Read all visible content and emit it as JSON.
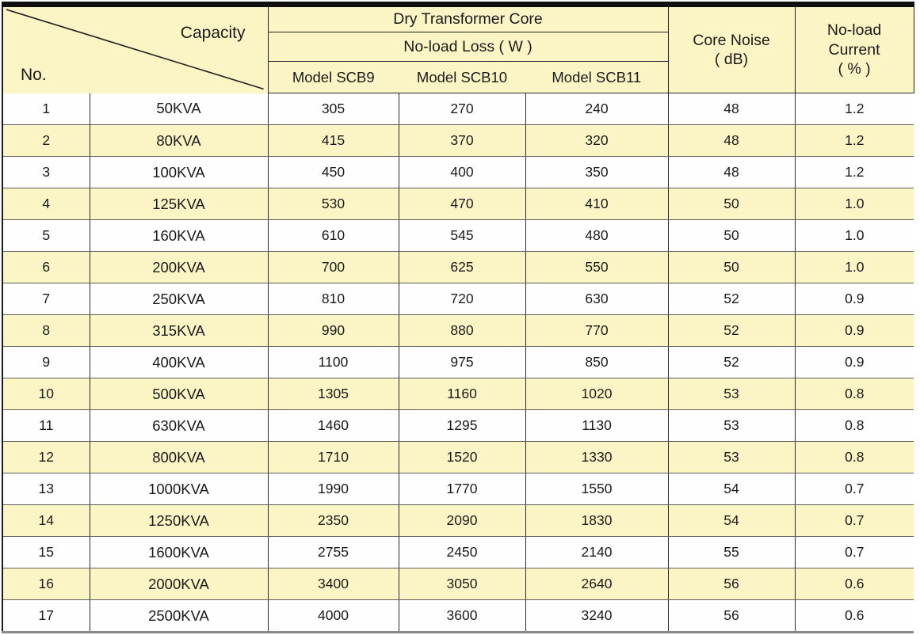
{
  "table": {
    "corner": {
      "row_label": "No.",
      "col_label": "Capacity"
    },
    "header": {
      "group_title": "Dry Transformer Core",
      "sub_title": "No-load Loss ( W )",
      "model_columns": [
        "Model SCB9",
        "Model SCB10",
        "Model SCB11"
      ],
      "core_noise": "Core Noise\n( dB)",
      "no_load_current": "No-load\nCurrent\n( % )"
    },
    "rows": [
      {
        "no": "1",
        "capacity": "50KVA",
        "scb9": "305",
        "scb10": "270",
        "scb11": "240",
        "noise": "48",
        "current": "1.2"
      },
      {
        "no": "2",
        "capacity": "80KVA",
        "scb9": "415",
        "scb10": "370",
        "scb11": "320",
        "noise": "48",
        "current": "1.2"
      },
      {
        "no": "3",
        "capacity": "100KVA",
        "scb9": "450",
        "scb10": "400",
        "scb11": "350",
        "noise": "48",
        "current": "1.2"
      },
      {
        "no": "4",
        "capacity": "125KVA",
        "scb9": "530",
        "scb10": "470",
        "scb11": "410",
        "noise": "50",
        "current": "1.0"
      },
      {
        "no": "5",
        "capacity": "160KVA",
        "scb9": "610",
        "scb10": "545",
        "scb11": "480",
        "noise": "50",
        "current": "1.0"
      },
      {
        "no": "6",
        "capacity": "200KVA",
        "scb9": "700",
        "scb10": "625",
        "scb11": "550",
        "noise": "50",
        "current": "1.0"
      },
      {
        "no": "7",
        "capacity": "250KVA",
        "scb9": "810",
        "scb10": "720",
        "scb11": "630",
        "noise": "52",
        "current": "0.9"
      },
      {
        "no": "8",
        "capacity": "315KVA",
        "scb9": "990",
        "scb10": "880",
        "scb11": "770",
        "noise": "52",
        "current": "0.9"
      },
      {
        "no": "9",
        "capacity": "400KVA",
        "scb9": "1100",
        "scb10": "975",
        "scb11": "850",
        "noise": "52",
        "current": "0.9"
      },
      {
        "no": "10",
        "capacity": "500KVA",
        "scb9": "1305",
        "scb10": "1160",
        "scb11": "1020",
        "noise": "53",
        "current": "0.8"
      },
      {
        "no": "11",
        "capacity": "630KVA",
        "scb9": "1460",
        "scb10": "1295",
        "scb11": "1130",
        "noise": "53",
        "current": "0.8"
      },
      {
        "no": "12",
        "capacity": "800KVA",
        "scb9": "1710",
        "scb10": "1520",
        "scb11": "1330",
        "noise": "53",
        "current": "0.8"
      },
      {
        "no": "13",
        "capacity": "1000KVA",
        "scb9": "1990",
        "scb10": "1770",
        "scb11": "1550",
        "noise": "54",
        "current": "0.7"
      },
      {
        "no": "14",
        "capacity": "1250KVA",
        "scb9": "2350",
        "scb10": "2090",
        "scb11": "1830",
        "noise": "54",
        "current": "0.7"
      },
      {
        "no": "15",
        "capacity": "1600KVA",
        "scb9": "2755",
        "scb10": "2450",
        "scb11": "2140",
        "noise": "55",
        "current": "0.7"
      },
      {
        "no": "16",
        "capacity": "2000KVA",
        "scb9": "3400",
        "scb10": "3050",
        "scb11": "2640",
        "noise": "56",
        "current": "0.6"
      },
      {
        "no": "17",
        "capacity": "2500KVA",
        "scb9": "4000",
        "scb10": "3600",
        "scb11": "3240",
        "noise": "56",
        "current": "0.6"
      }
    ]
  },
  "colors": {
    "band_yellow": "#fbf5c5",
    "band_white": "#fefefe",
    "border_dark": "#1d1d1d",
    "border_gray": "#8a8a8a"
  }
}
